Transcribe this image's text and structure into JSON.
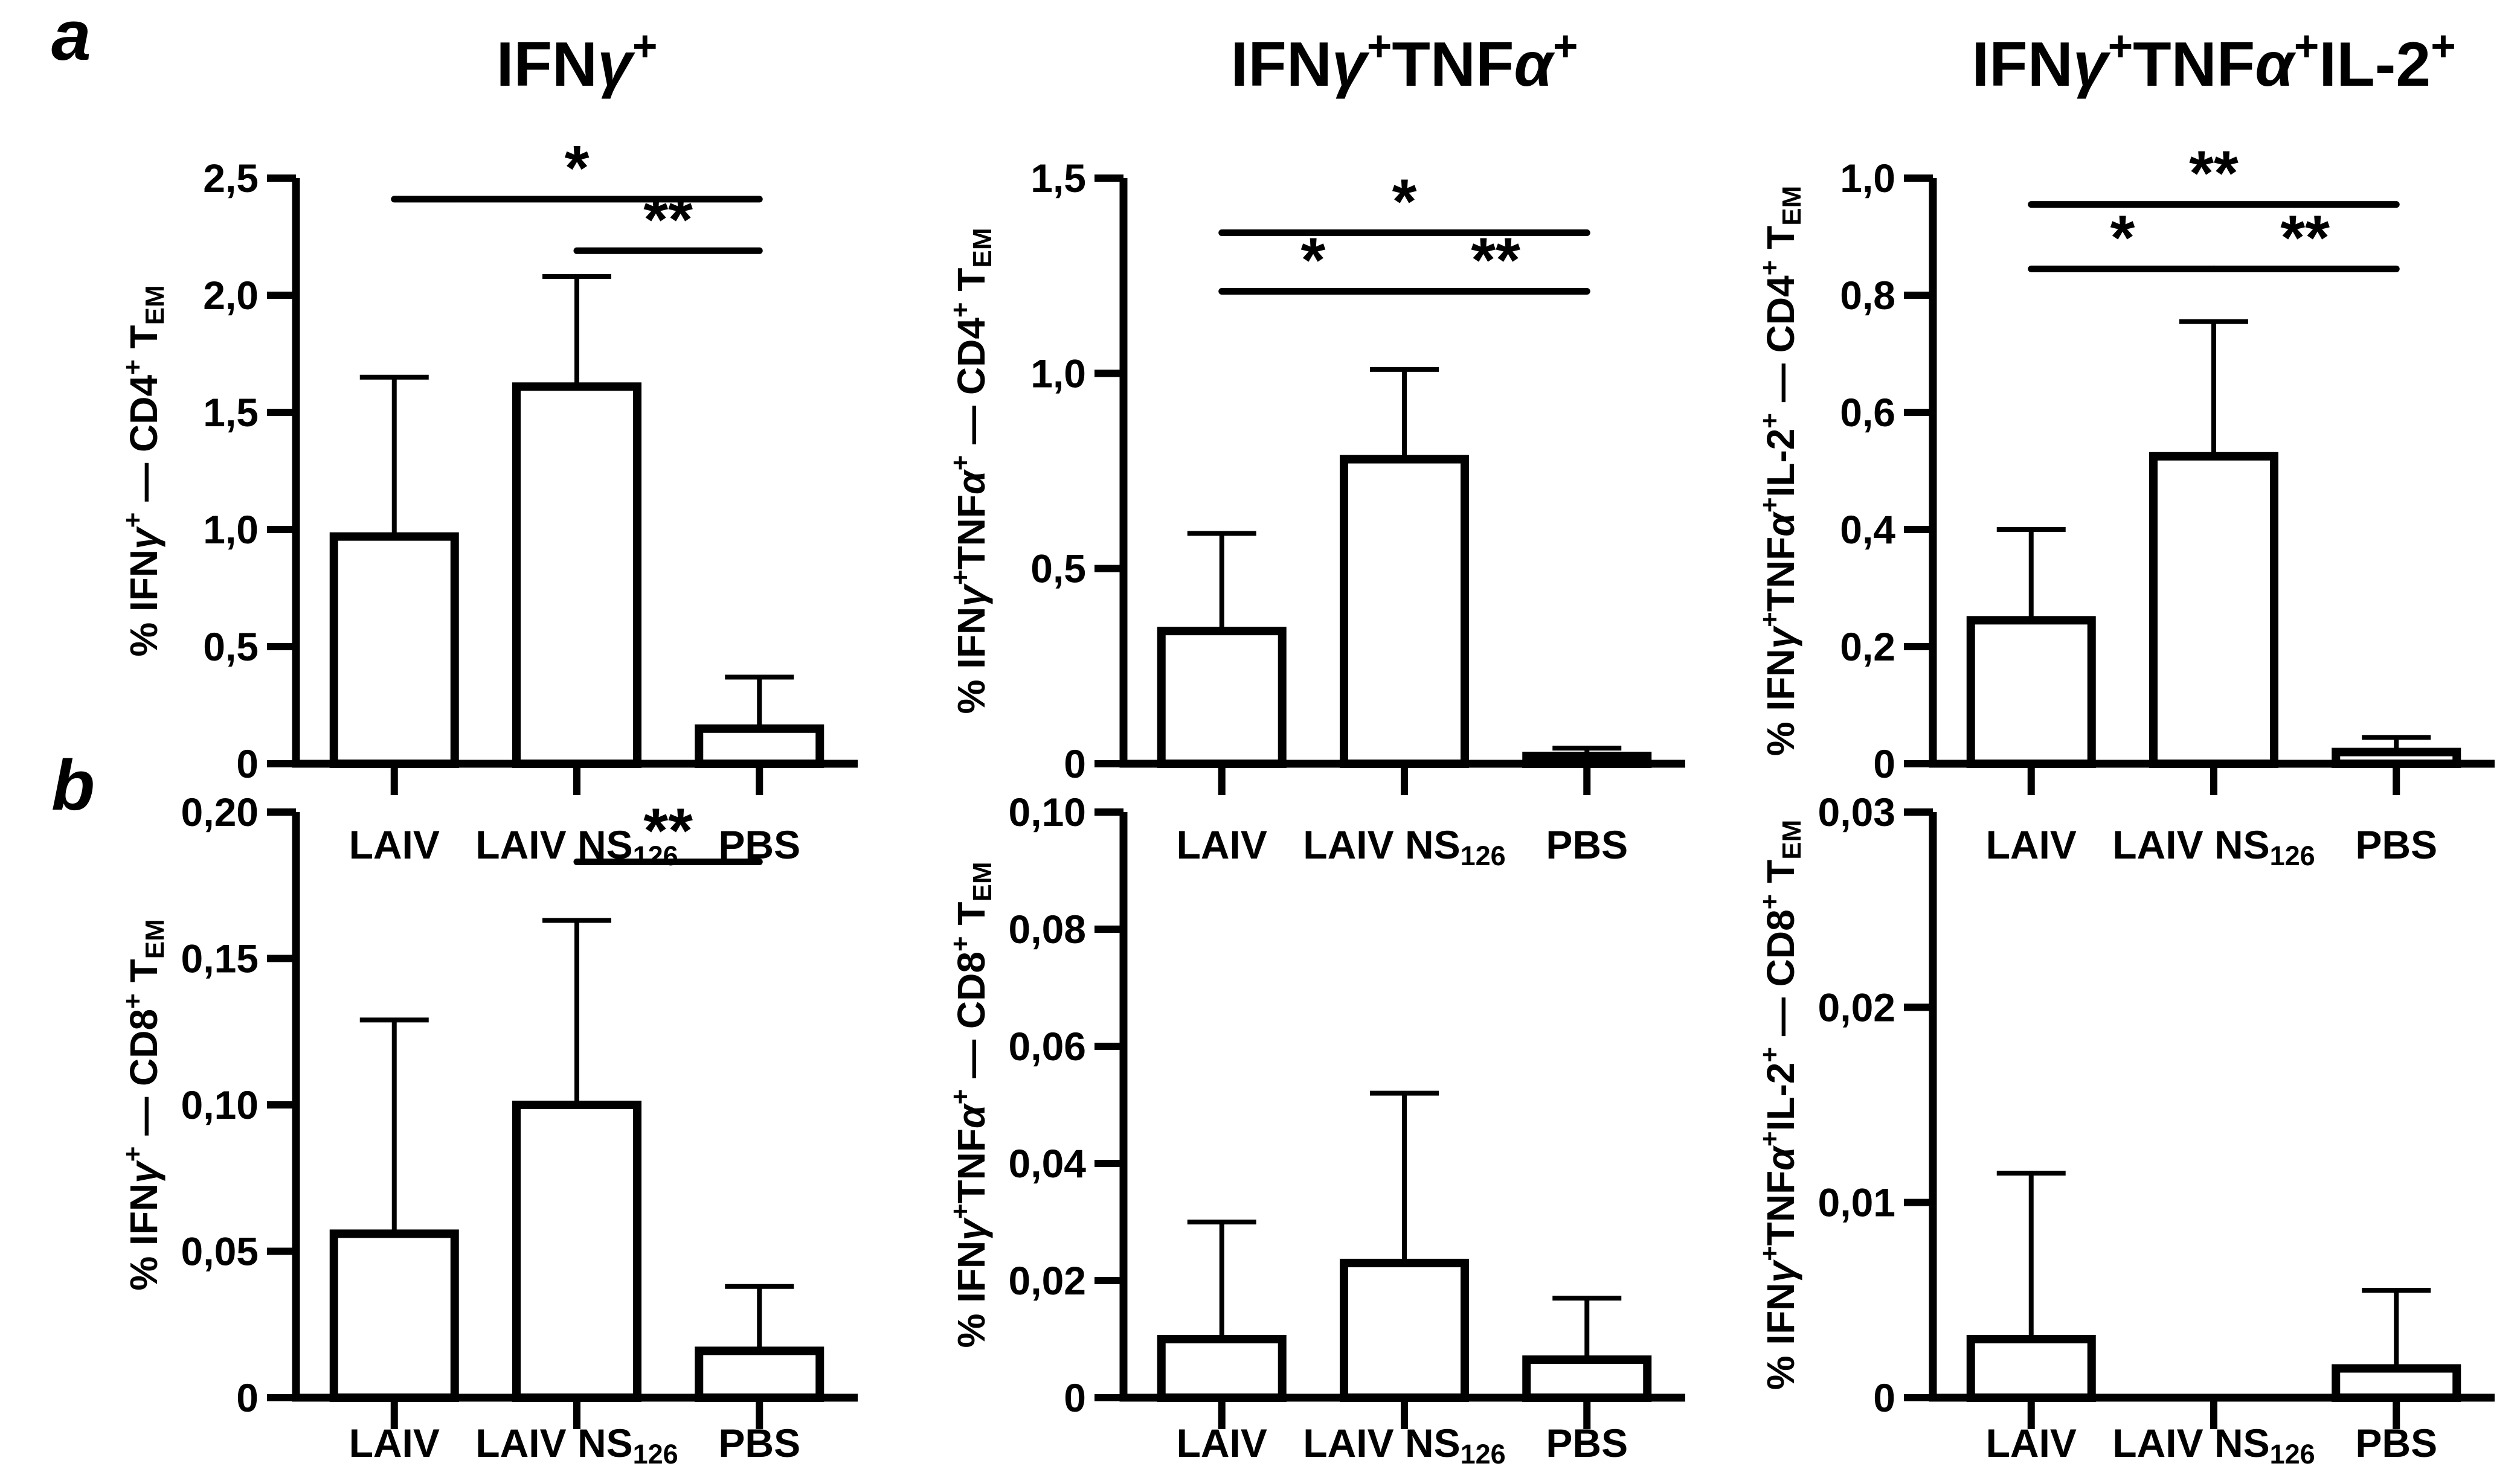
{
  "page": {
    "background": "#ffffff",
    "ink": "#000000",
    "decimal_separator": ","
  },
  "panels": [
    {
      "label": "a"
    },
    {
      "label": "b"
    }
  ],
  "chart_data": [
    {
      "id": "cd4-ifng",
      "type": "bar",
      "row": "a",
      "title": "IFNγ^+^",
      "ylabel": "% IFNγ^+^ — CD4^+^ T_EM_",
      "xlabel": "",
      "ylim": [
        0,
        2.5
      ],
      "tick_values": [
        0,
        0.5,
        1.0,
        1.5,
        2.0,
        2.5
      ],
      "tick_labels": [
        "0",
        "0,5",
        "1,0",
        "1,5",
        "2,0",
        "2,5"
      ],
      "categories": [
        "LAIV",
        "LAIV NS_126_",
        "PBS"
      ],
      "values": [
        0.97,
        1.61,
        0.15
      ],
      "error_top": [
        1.65,
        2.08,
        0.37
      ],
      "significance": [
        {
          "from": 0,
          "to": 2,
          "y": 2.41,
          "label": "*"
        },
        {
          "from": 1,
          "to": 2,
          "y": 2.19,
          "label": "**"
        }
      ],
      "grid": "off",
      "legend": "none"
    },
    {
      "id": "cd4-ifng-tnfa",
      "type": "bar",
      "row": "a",
      "title": "IFNγ^+^TNFα^+^",
      "ylabel": "% IFNγ^+^TNFα^+^ — CD4^+^ T_EM_",
      "xlabel": "",
      "ylim": [
        0,
        1.5
      ],
      "tick_values": [
        0,
        0.5,
        1.0,
        1.5
      ],
      "tick_labels": [
        "0",
        "0,5",
        "1,0",
        "1,5"
      ],
      "categories": [
        "LAIV",
        "LAIV NS_126_",
        "PBS"
      ],
      "values": [
        0.34,
        0.78,
        0.02
      ],
      "error_top": [
        0.59,
        1.01,
        0.04
      ],
      "significance": [
        {
          "from": 0,
          "to": 2,
          "y": 1.36,
          "label": "*"
        },
        {
          "from": 0,
          "to": 1,
          "y": 1.21,
          "label": "*"
        },
        {
          "from": 1,
          "to": 2,
          "y": 1.21,
          "label": "**"
        }
      ],
      "grid": "off",
      "legend": "none"
    },
    {
      "id": "cd4-ifng-tnfa-il2",
      "type": "bar",
      "row": "a",
      "title": "IFNγ^+^TNFα^+^IL-2^+^",
      "ylabel": "% IFNγ^+^TNFα^+^IL-2^+^ — CD4^+^ T_EM_",
      "xlabel": "",
      "ylim": [
        0,
        1.0
      ],
      "tick_values": [
        0,
        0.2,
        0.4,
        0.6,
        0.8,
        1.0
      ],
      "tick_labels": [
        "0",
        "0,2",
        "0,4",
        "0,6",
        "0,8",
        "1,0"
      ],
      "categories": [
        "LAIV",
        "LAIV NS_126_",
        "PBS"
      ],
      "values": [
        0.245,
        0.525,
        0.02
      ],
      "error_top": [
        0.4,
        0.755,
        0.045
      ],
      "significance": [
        {
          "from": 0,
          "to": 2,
          "y": 0.955,
          "label": "**"
        },
        {
          "from": 0,
          "to": 1,
          "y": 0.845,
          "label": "*"
        },
        {
          "from": 1,
          "to": 2,
          "y": 0.845,
          "label": "**"
        }
      ],
      "grid": "off",
      "legend": "none"
    },
    {
      "id": "cd8-ifng",
      "type": "bar",
      "row": "b",
      "title": "",
      "ylabel": "% IFNγ^+^ — CD8^+^ T_EM_",
      "xlabel": "",
      "ylim": [
        0,
        0.2
      ],
      "tick_values": [
        0,
        0.05,
        0.1,
        0.15,
        0.2
      ],
      "tick_labels": [
        "0",
        "0,05",
        "0,10",
        "0,15",
        "0,20"
      ],
      "categories": [
        "LAIV",
        "LAIV NS_126_",
        "PBS"
      ],
      "values": [
        0.056,
        0.1,
        0.016
      ],
      "error_top": [
        0.129,
        0.163,
        0.038
      ],
      "significance": [
        {
          "from": 1,
          "to": 2,
          "y": 0.183,
          "label": "**"
        }
      ],
      "grid": "off",
      "legend": "none"
    },
    {
      "id": "cd8-ifng-tnfa",
      "type": "bar",
      "row": "b",
      "title": "",
      "ylabel": "% IFNγ^+^TNFα^+^ — CD8^+^ T_EM_",
      "xlabel": "",
      "ylim": [
        0,
        0.1
      ],
      "tick_values": [
        0,
        0.02,
        0.04,
        0.06,
        0.08,
        0.1
      ],
      "tick_labels": [
        "0",
        "0,02",
        "0,04",
        "0,06",
        "0,08",
        "0,10"
      ],
      "categories": [
        "LAIV",
        "LAIV NS_126_",
        "PBS"
      ],
      "values": [
        0.01,
        0.023,
        0.0065
      ],
      "error_top": [
        0.03,
        0.052,
        0.017
      ],
      "significance": [],
      "grid": "off",
      "legend": "none"
    },
    {
      "id": "cd8-ifng-tnfa-il2",
      "type": "bar",
      "row": "b",
      "title": "",
      "ylabel": "% IFNγ^+^TNFα^+^IL-2^+^ — CD8^+^ T_EM_",
      "xlabel": "",
      "ylim": [
        0,
        0.03
      ],
      "tick_values": [
        0,
        0.01,
        0.02,
        0.03
      ],
      "tick_labels": [
        "0",
        "0,01",
        "0,02",
        "0,03"
      ],
      "categories": [
        "LAIV",
        "LAIV NS_126_",
        "PBS"
      ],
      "values": [
        0.003,
        0,
        0.0015
      ],
      "error_top": [
        0.0115,
        null,
        0.0055
      ],
      "significance": [],
      "grid": "off",
      "legend": "none"
    }
  ]
}
